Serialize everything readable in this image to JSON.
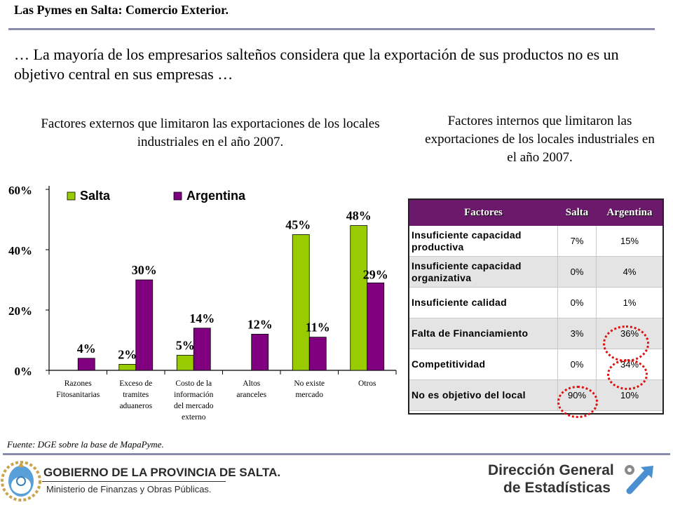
{
  "page": {
    "title": "Las Pymes en Salta: Comercio Exterior.",
    "headline": "… La mayoría de los empresarios salteños considera que la exportación de sus productos no es un objetivo central en sus empresas …",
    "external_heading": "Factores externos que limitaron las exportaciones de los locales industriales en el año 2007.",
    "internal_heading": "Factores internos que limitaron las exportaciones de los locales industriales en el año 2007.",
    "source": "Fuente: DGE  sobre la base de MapaPyme."
  },
  "colors": {
    "salta": "#99cc00",
    "argentina": "#800080",
    "rule": "#8a8cad",
    "table_header": "#6b1a6b",
    "highlight_ring": "#e01010"
  },
  "chart_data": {
    "type": "bar",
    "categories": [
      [
        "Razones",
        "Fitosanitarias"
      ],
      [
        "Exceso de",
        "tramites",
        "aduaneros"
      ],
      [
        "Costo de la",
        "información",
        "del mercado",
        "externo"
      ],
      [
        "Altos",
        "aranceles"
      ],
      [
        "No existe",
        "mercado"
      ],
      [
        "Otros"
      ]
    ],
    "series": [
      {
        "name": "Salta",
        "values": [
          null,
          2,
          5,
          null,
          45,
          48
        ],
        "labels": [
          "",
          "2%",
          "5%",
          "",
          "45%",
          "48%"
        ]
      },
      {
        "name": "Argentina",
        "values": [
          4,
          30,
          14,
          12,
          11,
          29
        ],
        "labels": [
          "4%",
          "30%",
          "14%",
          "12%",
          "11%",
          "29%"
        ]
      }
    ],
    "yticks": [
      "0%",
      "20%",
      "40%",
      "60%"
    ],
    "ylim": [
      0,
      60
    ],
    "legend_position": "top",
    "grid": false
  },
  "table": {
    "headers": [
      "Factores",
      "Salta",
      "Argentina"
    ],
    "rows": [
      {
        "factor": "Insuficiente capacidad productiva",
        "salta": "7%",
        "argentina": "15%"
      },
      {
        "factor": "Insuficiente capacidad organizativa",
        "salta": "0%",
        "argentina": "4%"
      },
      {
        "factor": "Insuficiente calidad",
        "salta": "0%",
        "argentina": "1%"
      },
      {
        "factor": "Falta de Financiamiento",
        "salta": "3%",
        "argentina": "36%"
      },
      {
        "factor": "Competitividad",
        "salta": "0%",
        "argentina": "34%"
      },
      {
        "factor": "No es objetivo del local",
        "salta": "90%",
        "argentina": "10%"
      }
    ],
    "highlighted": [
      "Falta de Financiamiento / Argentina",
      "Competitividad / Argentina",
      "No es objetivo del local / Salta"
    ]
  },
  "footer": {
    "gov_title": "GOBIERNO DE LA PROVINCIA DE SALTA.",
    "gov_subtitle": "Ministerio de Finanzas y Obras Públicas.",
    "dge_line1": "Dirección General",
    "dge_line2": "de Estadísticas"
  }
}
